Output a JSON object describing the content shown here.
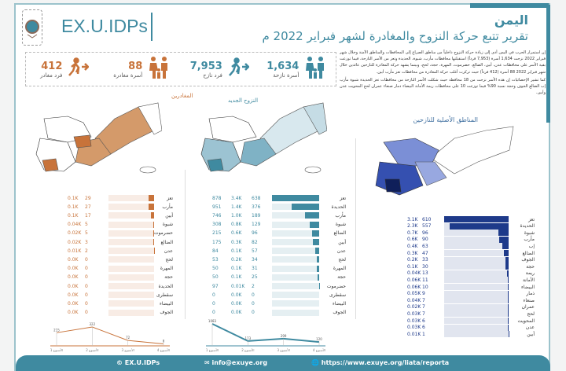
{
  "header": {
    "brand": "EX.U.IDPs",
    "country": "اليمن",
    "title": "تقرير تتبع حركة النزوح والمغادرة لشهر فبراير 2022 م"
  },
  "kpis": [
    {
      "value": "1,634",
      "label": "أسرة نازحة",
      "color": "#3f8aa0",
      "icon": "family-icon"
    },
    {
      "value": "7,953",
      "label": "فرد نازح",
      "color": "#3f8aa0",
      "icon": "running-person-icon"
    },
    {
      "value": "88",
      "label": "أسرة مغادرة",
      "color": "#c8733a",
      "icon": "family-icon"
    },
    {
      "value": "412",
      "label": "فرد مغادر",
      "color": "#c8733a",
      "icon": "running-person-icon"
    }
  ],
  "intro": {
    "p1": "إن استمرار الحرب في اليمن أدى إلى زيادة حركة النزوح داخلياً من مناطق الصراع إلى المحافظات والمناطق الآمنة وخلال شهر فبراير 2022 نزحت 1,634 أسرة (7,953 فرداً) استقبلتها محافظات مأرب، شبوة، الحديدة وتعز من الأسر النازحة، فيما توزعت بقية الأسر على محافظات عدن، أبين، الضالع، حضرموت، المهرة، حجة، لحج، وبينما يشهد حركة المغادرة للنازحين عائدين خلال شهر فبراير 2022 88 أسرة (412 فرداً) حيث تركزت أغلب حركة المغادرة من محافظات تعز مأرب أبين.",
    "p2": "كما تشير الإحصائيات إن هذه الأسر نزحت من 18 محافظة حيث شكلت الأسر النازحة من محافظات تعز الحديدة شبوة مأرب إب الضالع الجوف وحجة نسبة 90% فيما توزعت 10 على محافظات ريمة الأمانة البيضاء ذمار صنعاء عمران لحج المحويت عدن وأبين."
  },
  "sections": {
    "departed": "المغادرين",
    "new_displacement": "النزوح الجديد",
    "origin": "المناطق الأصلية للنازحين"
  },
  "departed_table": {
    "color": "#c8733a",
    "rows": [
      [
        "تعز",
        "0.1K",
        "29"
      ],
      [
        "مأرب",
        "0.1K",
        "27"
      ],
      [
        "أبين",
        "0.1K",
        "17"
      ],
      [
        "شبوة",
        "0.04K",
        "5"
      ],
      [
        "حضرموت",
        "0.02K",
        "5"
      ],
      [
        "الضالع",
        "0.02K",
        "3"
      ],
      [
        "عدن",
        "0.01K",
        "2"
      ],
      [
        "لحج",
        "0.0K",
        "0"
      ],
      [
        "المهرة",
        "0.0K",
        "0"
      ],
      [
        "حجة",
        "0.0K",
        "0"
      ],
      [
        "الحديدة",
        "0.0K",
        "0"
      ],
      [
        "سقطرى",
        "0.0K",
        "0"
      ],
      [
        "البيضاء",
        "0.0K",
        "0"
      ],
      [
        "الجوف",
        "0.0K",
        "0"
      ]
    ]
  },
  "new_table": {
    "color": "#3f8aa0",
    "rows": [
      [
        "تعز",
        "878",
        "3.4K",
        "638"
      ],
      [
        "الحديدة",
        "951",
        "1.4K",
        "376"
      ],
      [
        "مأرب",
        "746",
        "1.0K",
        "189"
      ],
      [
        "شبوة",
        "308",
        "0.8K",
        "129"
      ],
      [
        "الضالع",
        "215",
        "0.6K",
        "96"
      ],
      [
        "أبين",
        "175",
        "0.3K",
        "82"
      ],
      [
        "عدن",
        "84",
        "0.1K",
        "57"
      ],
      [
        "لحج",
        "53",
        "0.2K",
        "34"
      ],
      [
        "المهرة",
        "50",
        "0.1K",
        "31"
      ],
      [
        "حجة",
        "50",
        "0.1K",
        "25"
      ],
      [
        "حضرموت",
        "97",
        "0.01K",
        "2"
      ],
      [
        "سقطرى",
        "0",
        "0.0K",
        "0"
      ],
      [
        "البيضاء",
        "0",
        "0.0K",
        "0"
      ],
      [
        "الجوف",
        "0",
        "0.0K",
        "0"
      ]
    ]
  },
  "origin_table": {
    "color": "#1e3a8a",
    "rows": [
      [
        "تعز",
        "3.1K",
        "610"
      ],
      [
        "الحديدة",
        "2.3K",
        "557"
      ],
      [
        "شبوة",
        "0.7K",
        "96"
      ],
      [
        "مأرب",
        "0.6K",
        "90"
      ],
      [
        "إب",
        "0.4K",
        "63"
      ],
      [
        "الضالع",
        "0.3K",
        "47"
      ],
      [
        "الجوف",
        "0.2K",
        "33"
      ],
      [
        "حجة",
        "0.1K",
        "30"
      ],
      [
        "ريمة",
        "0.04K",
        "13"
      ],
      [
        "الأمانة",
        "0.06K",
        "11"
      ],
      [
        "البيضاء",
        "0.06K",
        "10"
      ],
      [
        "ذمار",
        "0.05K",
        "9"
      ],
      [
        "صنعاء",
        "0.04K",
        "7"
      ],
      [
        "عمران",
        "0.02K",
        "7"
      ],
      [
        "لحج",
        "0.03K",
        "7"
      ],
      [
        "المحويت",
        "0.03K",
        "6"
      ],
      [
        "عدن",
        "0.03K",
        "6"
      ],
      [
        "أبين",
        "0.01K",
        "1"
      ]
    ]
  },
  "chart_data": [
    {
      "type": "line",
      "categories": [
        "الأسبوع 1",
        "الأسبوع 2",
        "الأسبوع 3",
        "الأسبوع 4"
      ],
      "values": [
        215,
        322,
        72,
        8
      ],
      "color": "#c8733a"
    },
    {
      "type": "line",
      "categories": [
        "الأسبوع 1",
        "الأسبوع 2",
        "الأسبوع 3",
        "الأسبوع 4"
      ],
      "values": [
        1083,
        173,
        299,
        120
      ],
      "color": "#3f8aa0"
    }
  ],
  "footer": {
    "brand": "EX.U.IDPs",
    "email": "info@exuye.org",
    "url": "https://www.exuye.org/liata/reporta"
  }
}
